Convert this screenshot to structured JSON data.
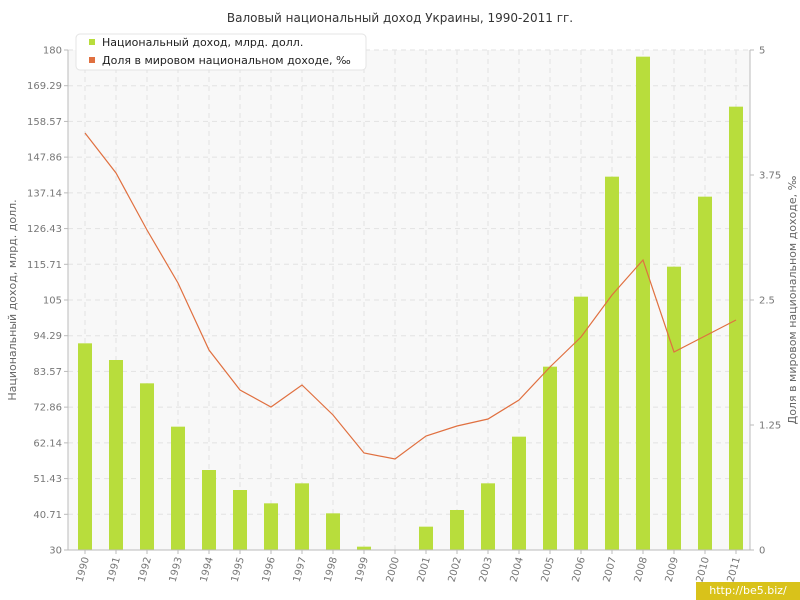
{
  "chart_data": {
    "type": "bar",
    "title": "Валовый национальный доход Украины, 1990-2011 гг.",
    "ylabel": "Национальный доход, млрд. долл.",
    "y2label": "Доля в мировом национальном доходе, ‰",
    "categories": [
      "1990",
      "1991",
      "1992",
      "1993",
      "1994",
      "1995",
      "1996",
      "1997",
      "1998",
      "1999",
      "2000",
      "2001",
      "2002",
      "2003",
      "2004",
      "2005",
      "2006",
      "2007",
      "2008",
      "2009",
      "2010",
      "2011"
    ],
    "series": [
      {
        "name": "Национальный доход, млрд. долл.",
        "type": "bar",
        "axis": "left",
        "color": "#b8dd3c",
        "values": [
          92,
          87,
          80,
          67,
          54,
          48,
          44,
          50,
          41,
          31,
          30,
          37,
          42,
          50,
          64,
          85,
          106,
          142,
          178,
          115,
          136,
          163
        ]
      },
      {
        "name": "Доля в мировом национальном доходе, ‰",
        "type": "line",
        "axis": "right",
        "color": "#e07040",
        "values": [
          4.17,
          3.77,
          3.2,
          2.67,
          2.0,
          1.6,
          1.43,
          1.65,
          1.35,
          0.97,
          0.91,
          1.14,
          1.24,
          1.31,
          1.5,
          1.83,
          2.13,
          2.55,
          2.9,
          1.98,
          2.14,
          2.3
        ]
      }
    ],
    "yticks": [
      "30",
      "40.71",
      "51.43",
      "62.14",
      "72.86",
      "83.57",
      "94.29",
      "105",
      "115.71",
      "126.43",
      "137.14",
      "147.86",
      "158.57",
      "169.29",
      "180"
    ],
    "ylim": [
      30,
      180
    ],
    "y2ticks": [
      "0",
      "1.25",
      "2.5",
      "3.75",
      "5"
    ],
    "y2lim": [
      0,
      5
    ],
    "grid": true,
    "legend_position": "top-left"
  },
  "watermark": "http://be5.biz/"
}
